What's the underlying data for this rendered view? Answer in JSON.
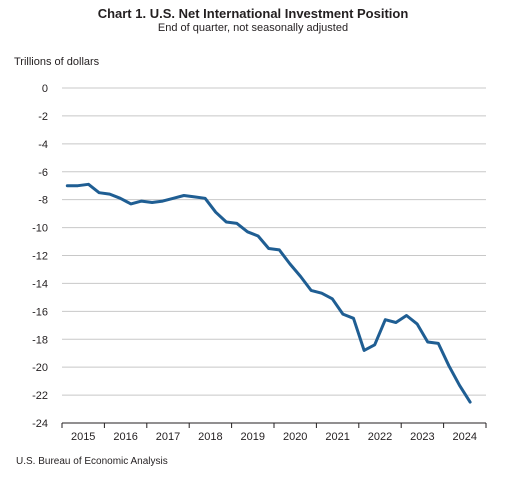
{
  "chart_data": {
    "type": "line",
    "title": "Chart 1. U.S. Net International Investment Position",
    "subtitle": "End of quarter, not seasonally adjusted",
    "ylabel": "Trillions of dollars",
    "xlabel": "",
    "ylim": [
      -24,
      0
    ],
    "yticks": [
      0,
      -2,
      -4,
      -6,
      -8,
      -10,
      -12,
      -14,
      -16,
      -18,
      -20,
      -22,
      -24
    ],
    "xlim": [
      2014.75,
      2024.75
    ],
    "xticks": [
      "2015",
      "2016",
      "2017",
      "2018",
      "2019",
      "2020",
      "2021",
      "2022",
      "2023",
      "2024"
    ],
    "grid": true,
    "series": [
      {
        "color": "#1f5e93",
        "x": [
          2014.875,
          2015.125,
          2015.375,
          2015.625,
          2015.875,
          2016.125,
          2016.375,
          2016.625,
          2016.875,
          2017.125,
          2017.375,
          2017.625,
          2017.875,
          2018.125,
          2018.375,
          2018.625,
          2018.875,
          2019.125,
          2019.375,
          2019.625,
          2019.875,
          2020.125,
          2020.375,
          2020.625,
          2020.875,
          2021.125,
          2021.375,
          2021.625,
          2021.875,
          2022.125,
          2022.375,
          2022.625,
          2022.875,
          2023.125,
          2023.375,
          2023.625,
          2023.875,
          2024.125,
          2024.375
        ],
        "values": [
          -7.0,
          -7.0,
          -6.9,
          -7.5,
          -7.6,
          -7.9,
          -8.3,
          -8.1,
          -8.2,
          -8.1,
          -7.9,
          -7.7,
          -7.8,
          -7.9,
          -8.9,
          -9.6,
          -9.7,
          -10.3,
          -10.6,
          -11.5,
          -11.6,
          -12.6,
          -13.5,
          -14.5,
          -14.7,
          -15.1,
          -16.2,
          -16.5,
          -18.8,
          -18.4,
          -16.6,
          -16.8,
          -16.3,
          -16.9,
          -18.2,
          -18.3,
          -19.9,
          -21.3,
          -22.5
        ]
      }
    ]
  },
  "source": "U.S. Bureau of Economic Analysis"
}
